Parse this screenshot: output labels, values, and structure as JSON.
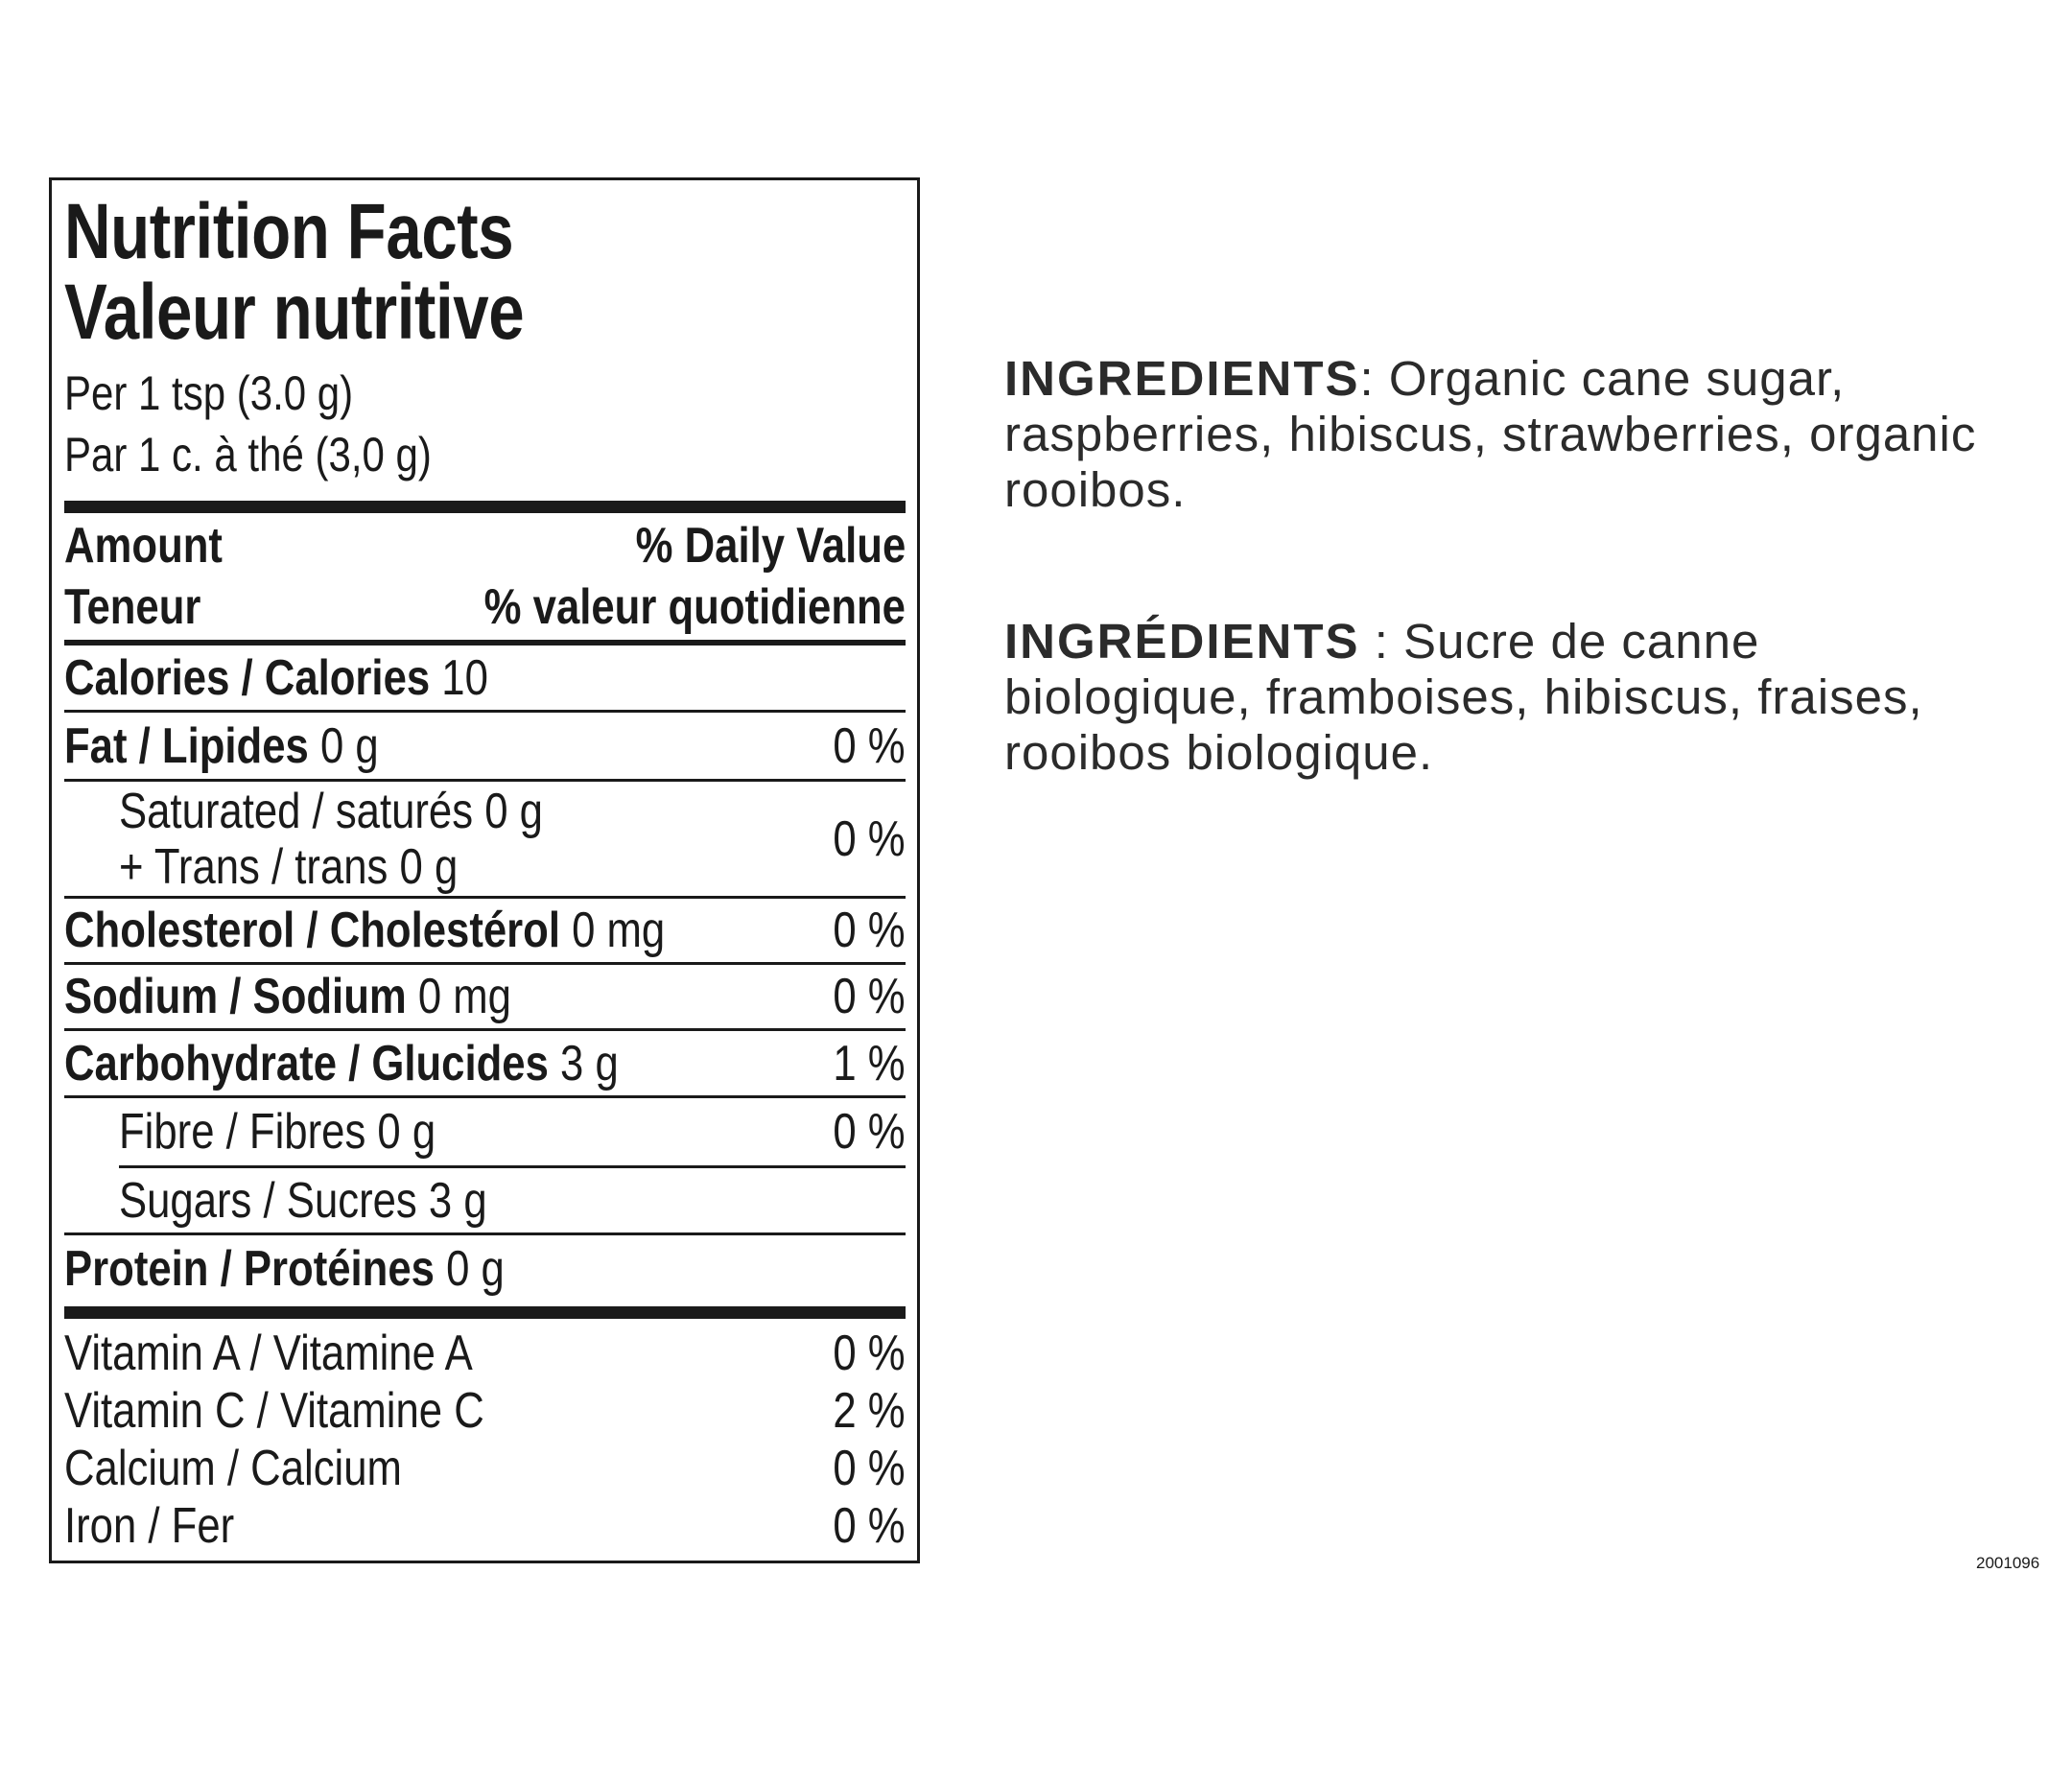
{
  "nutrition": {
    "title_en": "Nutrition Facts",
    "title_fr": "Valeur nutritive",
    "serving_en": "Per 1 tsp (3.0 g)",
    "serving_fr": "Par 1 c. à thé (3,0 g)",
    "header": {
      "amount_en": "Amount",
      "amount_fr": "Teneur",
      "dv_en": "% Daily Value",
      "dv_fr": "% valeur quotidienne"
    },
    "calories": {
      "label": "Calories / Calories",
      "value": "10"
    },
    "fat": {
      "label": "Fat / Lipides",
      "value": "0 g",
      "pct": "0 %"
    },
    "saturated": {
      "line1": "Saturated / saturés 0 g",
      "line2": "+ Trans / trans 0 g",
      "pct": "0 %"
    },
    "cholesterol": {
      "label": "Cholesterol / Cholestérol",
      "value": "0 mg",
      "pct": "0 %"
    },
    "sodium": {
      "label": "Sodium / Sodium",
      "value": "0 mg",
      "pct": "0 %"
    },
    "carbohydrate": {
      "label": "Carbohydrate / Glucides",
      "value": "3 g",
      "pct": "1 %"
    },
    "fibre": {
      "label": "Fibre / Fibres 0 g",
      "pct": "0 %"
    },
    "sugars": {
      "label": "Sugars / Sucres 3 g"
    },
    "protein": {
      "label": "Protein / Protéines",
      "value": "0 g"
    },
    "vitamins": [
      {
        "label": "Vitamin A / Vitamine A",
        "pct": "0 %"
      },
      {
        "label": "Vitamin C / Vitamine C",
        "pct": "2 %"
      },
      {
        "label": "Calcium / Calcium",
        "pct": "0 %"
      },
      {
        "label": "Iron / Fer",
        "pct": "0 %"
      }
    ]
  },
  "ingredients_en": {
    "heading": "INGREDIENTS",
    "text": ": Organic cane sugar, raspberries, hibiscus, strawberries, organic rooibos."
  },
  "ingredients_fr": {
    "heading": "INGRÉDIENTS",
    "text": " : Sucre de canne biologique, framboises, hibiscus, fraises, rooibos biologique."
  },
  "product_code": "2001096"
}
